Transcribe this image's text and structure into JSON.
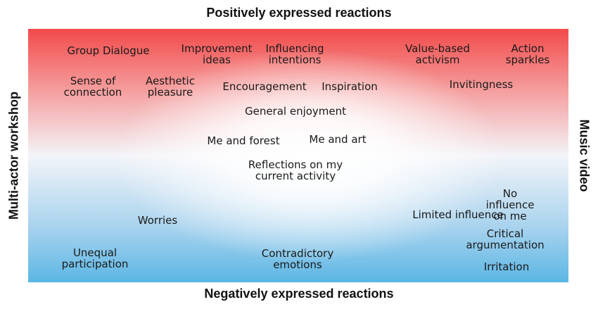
{
  "axes": {
    "top": "Positively expressed reactions",
    "bottom": "Negatively expressed reactions",
    "left": "Multi-actor workshop",
    "right": "Music video"
  },
  "reactions": [
    "Group Dialogue",
    "Improvement\nideas",
    "Influencing\nintentions",
    "Value-based\nactivism",
    "Action\nsparkles",
    "Sense of\nconnection",
    "Aesthetic\npleasure",
    "Encouragement",
    "Inspiration",
    "Invitingness",
    "General enjoyment",
    "Me and forest",
    "Me and art",
    "Reflections on my\ncurrent activity",
    "No influence on me",
    "Limited influence",
    "Worries",
    "Critical\nargumentation",
    "Unequal\nparticipation",
    "Contradictory\nemotions",
    "Irritation"
  ]
}
